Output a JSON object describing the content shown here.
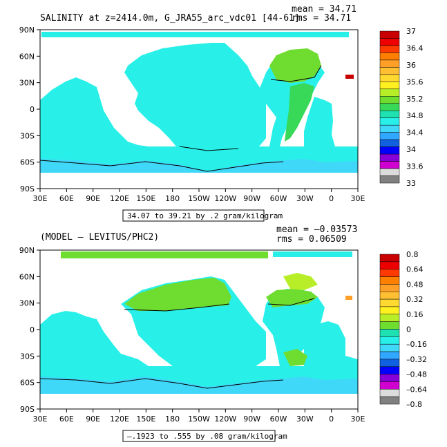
{
  "chart_data": [
    {
      "type": "heatmap",
      "title": "SALINITY at z=2414.0m, G_JRA55_arc_vdc01 [44-61]",
      "stats": {
        "mean": "mean = 34.71",
        "rms": "rms = 34.71"
      },
      "range_note": "34.07 to 39.21 by .2 gram/kilogram",
      "x_ticks": [
        "30E",
        "60E",
        "90E",
        "120E",
        "150E",
        "180",
        "150W",
        "120W",
        "90W",
        "60W",
        "30W",
        "0",
        "30E"
      ],
      "y_ticks": [
        "90N",
        "60N",
        "30N",
        "0",
        "30S",
        "60S",
        "90S"
      ],
      "colorbar": {
        "labels": [
          "37",
          "36.4",
          "36",
          "35.6",
          "35.2",
          "34.8",
          "34.4",
          "34",
          "33.6",
          "33"
        ],
        "colors": [
          "#c80000",
          "#ee0000",
          "#ff3a00",
          "#ff7f00",
          "#ff9f28",
          "#ffbf32",
          "#ffd830",
          "#fff020",
          "#b8ee28",
          "#6fdc30",
          "#38d858",
          "#1ee0b0",
          "#28f0e8",
          "#40d8f8",
          "#30a8ff",
          "#1060e0",
          "#0000ff",
          "#8800d8",
          "#d000d0",
          "#dcdcdc",
          "#808080"
        ]
      }
    },
    {
      "type": "heatmap",
      "title": "(MODEL – LEVITUS/PHC2)",
      "stats": {
        "mean": "mean = –0.03573",
        "rms": "rms = 0.06509"
      },
      "range_note": "–.1923 to .555 by .08 gram/kilogram",
      "x_ticks": [
        "30E",
        "60E",
        "90E",
        "120E",
        "150E",
        "180",
        "150W",
        "120W",
        "90W",
        "60W",
        "30W",
        "0",
        "30E"
      ],
      "y_ticks": [
        "90N",
        "60N",
        "30N",
        "0",
        "30S",
        "60S",
        "90S"
      ],
      "colorbar": {
        "labels": [
          "0.8",
          "0.64",
          "0.48",
          "0.32",
          "0.16",
          "0",
          "–0.16",
          "–0.32",
          "–0.48",
          "–0.64",
          "–0.8"
        ],
        "colors": [
          "#c80000",
          "#ee0000",
          "#ff3a00",
          "#ff7f00",
          "#ff9f28",
          "#ffbf32",
          "#ffd830",
          "#fff020",
          "#b8ee28",
          "#6fdc30",
          "#1ee0b0",
          "#28f0e8",
          "#40d8f8",
          "#30a8ff",
          "#1060e0",
          "#0000ff",
          "#8800d8",
          "#d000d0",
          "#dcdcdc",
          "#808080"
        ]
      }
    }
  ]
}
